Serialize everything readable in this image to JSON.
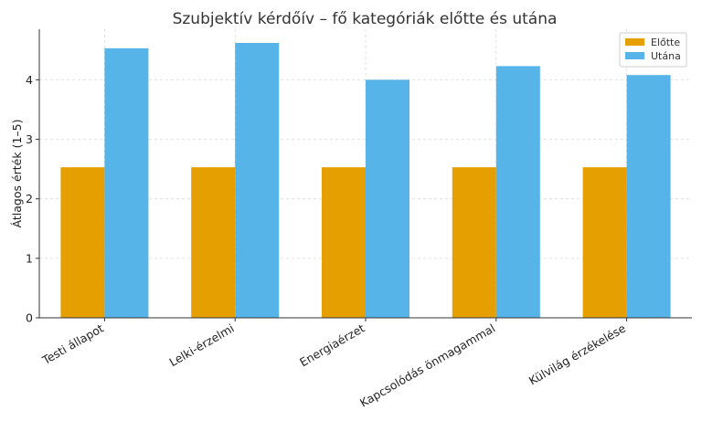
{
  "chart_data": {
    "type": "bar",
    "title": "Szubjektív kérdőív – fő kategóriák előtte és utána",
    "xlabel": "",
    "ylabel": "Átlagos érték (1–5)",
    "categories": [
      "Testi állapot",
      "Lelki-érzelmi",
      "Energiaérzet",
      "Kapcsolódás önmagammal",
      "Külvilág érzékelése"
    ],
    "series": [
      {
        "name": "Előtte",
        "color": "#E69F00",
        "values": [
          2.53,
          2.53,
          2.53,
          2.53,
          2.53
        ]
      },
      {
        "name": "Utána",
        "color": "#56B4E9",
        "values": [
          4.53,
          4.62,
          4.0,
          4.23,
          4.08
        ]
      }
    ],
    "ylim": [
      0,
      4.85
    ],
    "yticks": [
      0,
      1,
      2,
      3,
      4
    ],
    "grid": true,
    "legend": "top-right"
  }
}
